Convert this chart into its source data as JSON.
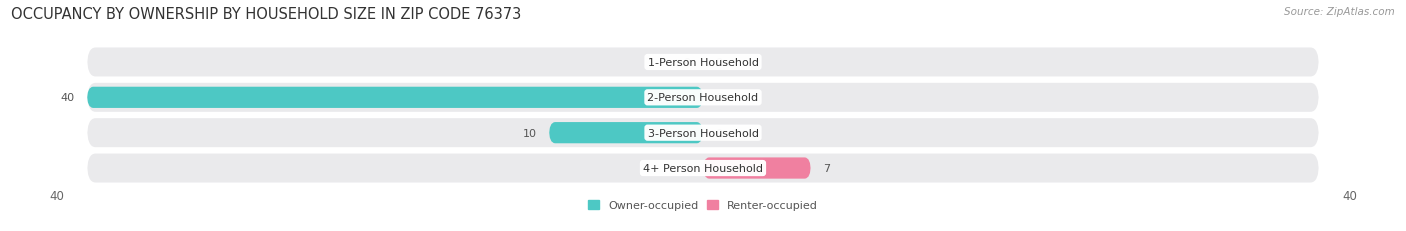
{
  "title": "OCCUPANCY BY OWNERSHIP BY HOUSEHOLD SIZE IN ZIP CODE 76373",
  "source": "Source: ZipAtlas.com",
  "categories": [
    "1-Person Household",
    "2-Person Household",
    "3-Person Household",
    "4+ Person Household"
  ],
  "owner_values": [
    0,
    40,
    10,
    0
  ],
  "renter_values": [
    0,
    0,
    0,
    7
  ],
  "axis_max": 40,
  "owner_color": "#4DC8C4",
  "renter_color": "#F080A0",
  "bar_bg_color": "#EAEAEC",
  "owner_label": "Owner-occupied",
  "renter_label": "Renter-occupied",
  "title_fontsize": 10.5,
  "label_fontsize": 8.0,
  "axis_label_fontsize": 8.5,
  "figsize": [
    14.06,
    2.32
  ],
  "dpi": 100,
  "background_color": "#FFFFFF"
}
